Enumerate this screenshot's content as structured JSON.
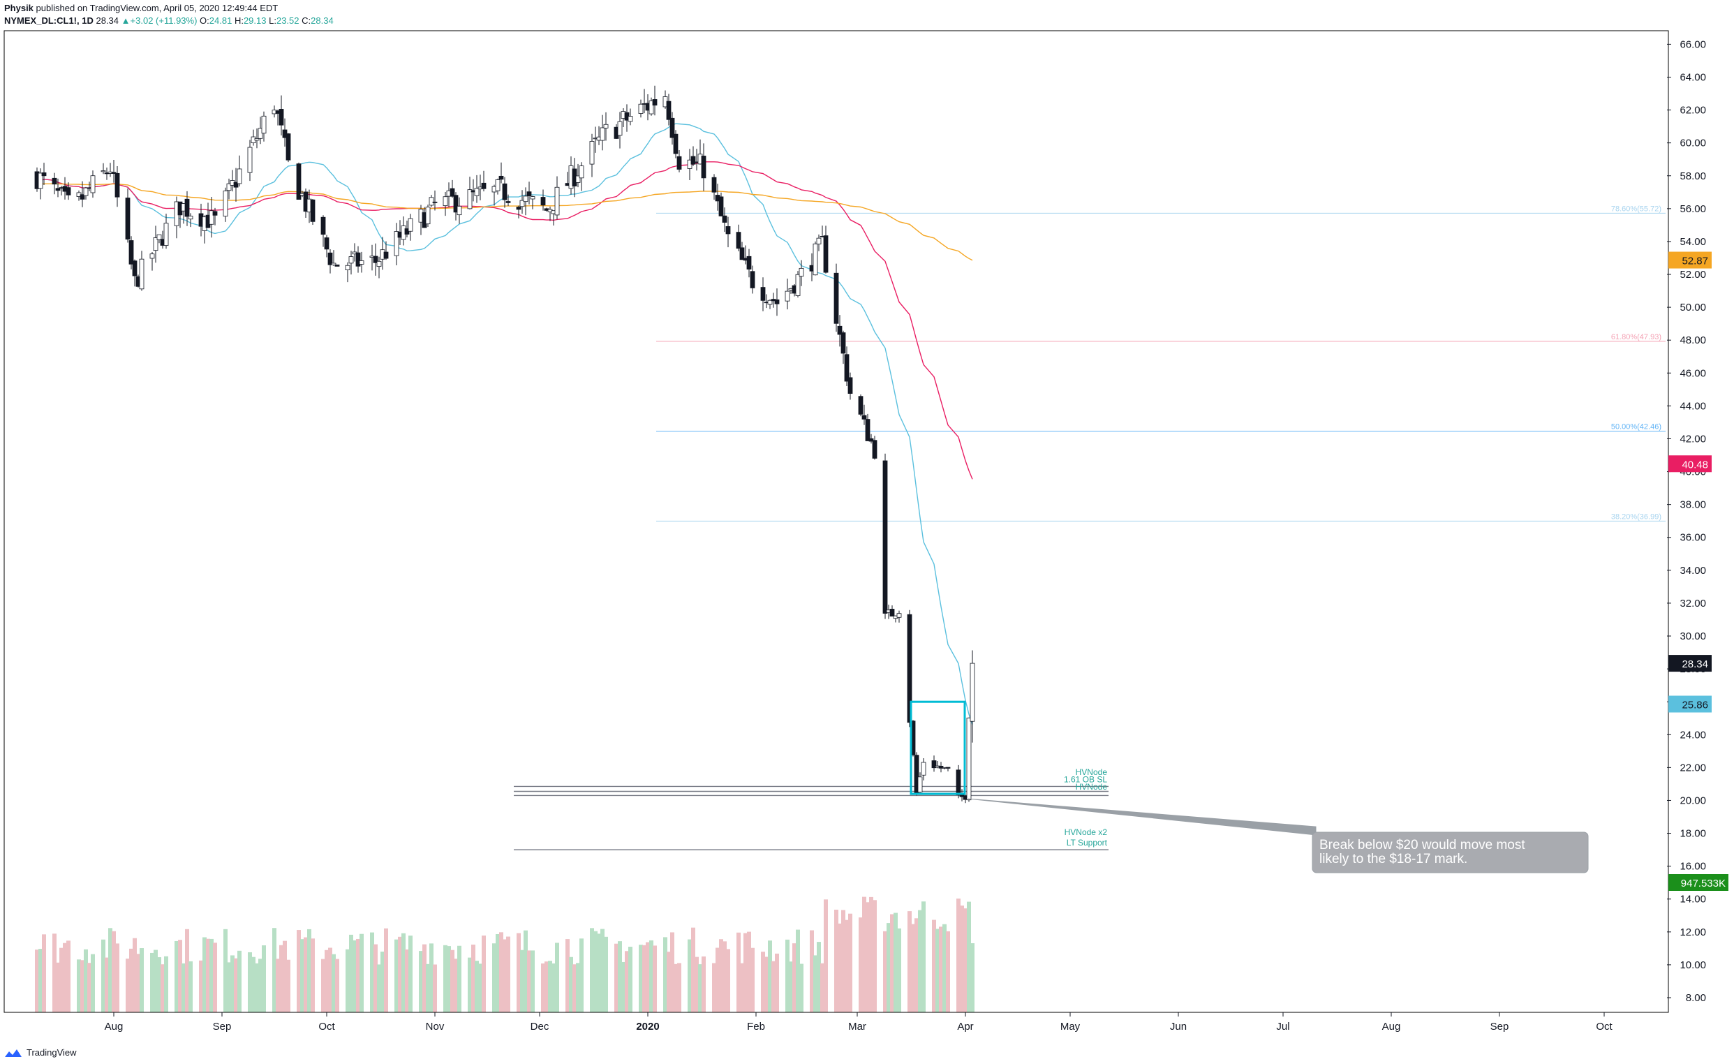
{
  "header": {
    "author": "Physik",
    "published": "published on TradingView.com, April 05, 2020 12:49:44 EDT",
    "symbol": "NYMEX_DL:CL1!, 1D",
    "last": "28.34",
    "change_arrow": "▲",
    "change": "+3.02 (+11.93%)",
    "o_label": "O:",
    "o_value": "24.81",
    "h_label": "H:",
    "h_value": "29.13",
    "l_label": "L:",
    "l_value": "23.52",
    "c_label": "C:",
    "c_value": "28.34"
  },
  "footer": {
    "brand": "TradingView",
    "icon": "tradingview-logo-icon"
  },
  "annotations": {
    "fib_786": "78.60%(55.72)",
    "fib_618": "61.80%(47.93)",
    "fib_500": "50.00%(42.46)",
    "fib_382": "38.20%(36.99)",
    "hvnode_top": "HVNode",
    "hvnode_mid": "1.61 OB SL",
    "hvnode_low": "HVNode",
    "hvnode_x2": "HVNode x2",
    "lt_support": "LT Support",
    "callout": [
      "Break below $20 would move most",
      "likely to the $18-17 mark."
    ]
  },
  "price_badges": {
    "ma200": "52.87",
    "ma50": "40.48",
    "close": "28.34",
    "ma20": "25.86",
    "volume": "947.533K"
  },
  "colors": {
    "up": "#26a69a",
    "down": "#131722",
    "vol_up": "#b7dfc5",
    "vol_down": "#edc0c4",
    "ma20": "#5bc0de",
    "ma50": "#e91e63",
    "ma200": "#f5a623",
    "box": "#00bcd4",
    "volume_badge": "#1b8f1b"
  },
  "chart_data": {
    "type": "candlestick",
    "title": "",
    "xlabel": "",
    "ylabel": "",
    "ylim": [
      7,
      67
    ],
    "y_ticks": [
      "66.00",
      "64.00",
      "62.00",
      "60.00",
      "58.00",
      "56.00",
      "54.00",
      "52.00",
      "50.00",
      "48.00",
      "46.00",
      "44.00",
      "42.00",
      "40.00",
      "38.00",
      "36.00",
      "34.00",
      "32.00",
      "30.00",
      "28.00",
      "26.00",
      "24.00",
      "22.00",
      "20.00",
      "18.00",
      "16.00",
      "14.00",
      "12.00",
      "10.00",
      "8.00"
    ],
    "x_ticks": [
      "Aug",
      "Sep",
      "Oct",
      "Nov",
      "Dec",
      "2020",
      "Feb",
      "Mar",
      "Apr",
      "May",
      "Jun",
      "Jul",
      "Aug",
      "Sep",
      "Oct"
    ],
    "price_anchors": [
      {
        "date": "2019-07-10",
        "close": 58.0
      },
      {
        "date": "2019-07-20",
        "close": 56.0
      },
      {
        "date": "2019-07-31",
        "close": 58.5
      },
      {
        "date": "2019-08-07",
        "close": 51.5
      },
      {
        "date": "2019-08-20",
        "close": 56.2
      },
      {
        "date": "2019-08-30",
        "close": 55.2
      },
      {
        "date": "2019-09-16",
        "close": 62.5
      },
      {
        "date": "2019-09-20",
        "close": 58.6
      },
      {
        "date": "2019-10-03",
        "close": 52.6
      },
      {
        "date": "2019-10-15",
        "close": 52.8
      },
      {
        "date": "2019-11-01",
        "close": 56.2
      },
      {
        "date": "2019-11-20",
        "close": 57.1
      },
      {
        "date": "2019-12-03",
        "close": 55.9
      },
      {
        "date": "2019-12-20",
        "close": 60.6
      },
      {
        "date": "2020-01-06",
        "close": 63.0
      },
      {
        "date": "2020-01-10",
        "close": 59.0
      },
      {
        "date": "2020-01-17",
        "close": 58.5
      },
      {
        "date": "2020-01-24",
        "close": 54.2
      },
      {
        "date": "2020-01-31",
        "close": 51.6
      },
      {
        "date": "2020-02-07",
        "close": 50.3
      },
      {
        "date": "2020-02-14",
        "close": 52.0
      },
      {
        "date": "2020-02-20",
        "close": 53.8
      },
      {
        "date": "2020-02-28",
        "close": 44.8
      },
      {
        "date": "2020-03-06",
        "close": 41.3
      },
      {
        "date": "2020-03-09",
        "close": 31.1
      },
      {
        "date": "2020-03-13",
        "close": 31.7
      },
      {
        "date": "2020-03-18",
        "close": 20.4
      },
      {
        "date": "2020-03-20",
        "close": 22.4
      },
      {
        "date": "2020-03-27",
        "close": 21.8
      },
      {
        "date": "2020-03-30",
        "close": 20.1
      },
      {
        "date": "2020-04-01",
        "close": 20.3
      },
      {
        "date": "2020-04-02",
        "close": 25.3
      },
      {
        "date": "2020-04-03",
        "close": 28.34
      }
    ],
    "moving_averages": [
      {
        "name": "MA20",
        "last": 25.86
      },
      {
        "name": "MA50",
        "last": 40.48
      },
      {
        "name": "MA200",
        "last": 52.87
      }
    ],
    "fib_levels": [
      {
        "label": "78.60%",
        "price": 55.72
      },
      {
        "label": "61.80%",
        "price": 47.93
      },
      {
        "label": "50.00%",
        "price": 42.46
      },
      {
        "label": "38.20%",
        "price": 36.99
      }
    ],
    "support_lines": [
      20.85,
      20.55,
      20.3,
      17.0
    ],
    "highlight_box": {
      "from": "2020-03-18",
      "to": "2020-03-31",
      "low": 20.4,
      "high": 26.0
    },
    "volume_last": "947.533K",
    "grid": false,
    "legend": "none"
  }
}
